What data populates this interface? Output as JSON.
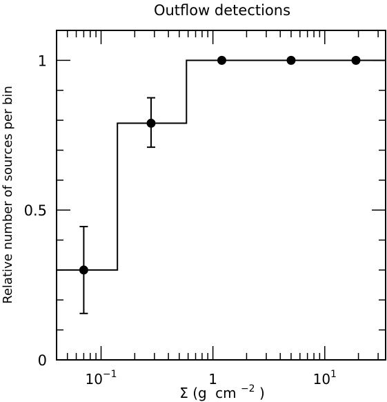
{
  "chart_data": {
    "type": "scatter",
    "title": "Outflow detections",
    "xlabel": {
      "base": "Σ (g",
      "unit_mid": "cm",
      "sup1": "−2",
      "close": ")"
    },
    "ylabel": "Relative number of sources per bin",
    "x_scale": "log",
    "xlim": [
      0.04,
      35
    ],
    "ylim": [
      0,
      1.1
    ],
    "x_major_ticks": [
      {
        "value": 0.1,
        "mant": "10",
        "exp": "−1"
      },
      {
        "value": 1,
        "mant": "1",
        "exp": ""
      },
      {
        "value": 10,
        "mant": "10",
        "exp": "1"
      }
    ],
    "y_tick_labels": [
      {
        "value": 0,
        "label": "0"
      },
      {
        "value": 0.5,
        "label": "0.5"
      },
      {
        "value": 1,
        "label": "1"
      }
    ],
    "y_minor_ticks": [
      0.1,
      0.2,
      0.3,
      0.4,
      0.6,
      0.7,
      0.8,
      0.9
    ],
    "points": [
      {
        "x": 0.07,
        "y": 0.3,
        "err_low": 0.145,
        "err_high": 0.145
      },
      {
        "x": 0.28,
        "y": 0.79,
        "err_low": 0.08,
        "err_high": 0.085
      },
      {
        "x": 1.2,
        "y": 1.0
      },
      {
        "x": 5.0,
        "y": 1.0
      },
      {
        "x": 19.0,
        "y": 1.0
      }
    ],
    "step": [
      {
        "x": 0.04,
        "y": 0.3
      },
      {
        "x": 0.14,
        "y": 0.3
      },
      {
        "x": 0.14,
        "y": 0.79
      },
      {
        "x": 0.58,
        "y": 0.79
      },
      {
        "x": 0.58,
        "y": 1.0
      },
      {
        "x": 35,
        "y": 1.0
      }
    ],
    "grid": false,
    "legend": "none"
  }
}
